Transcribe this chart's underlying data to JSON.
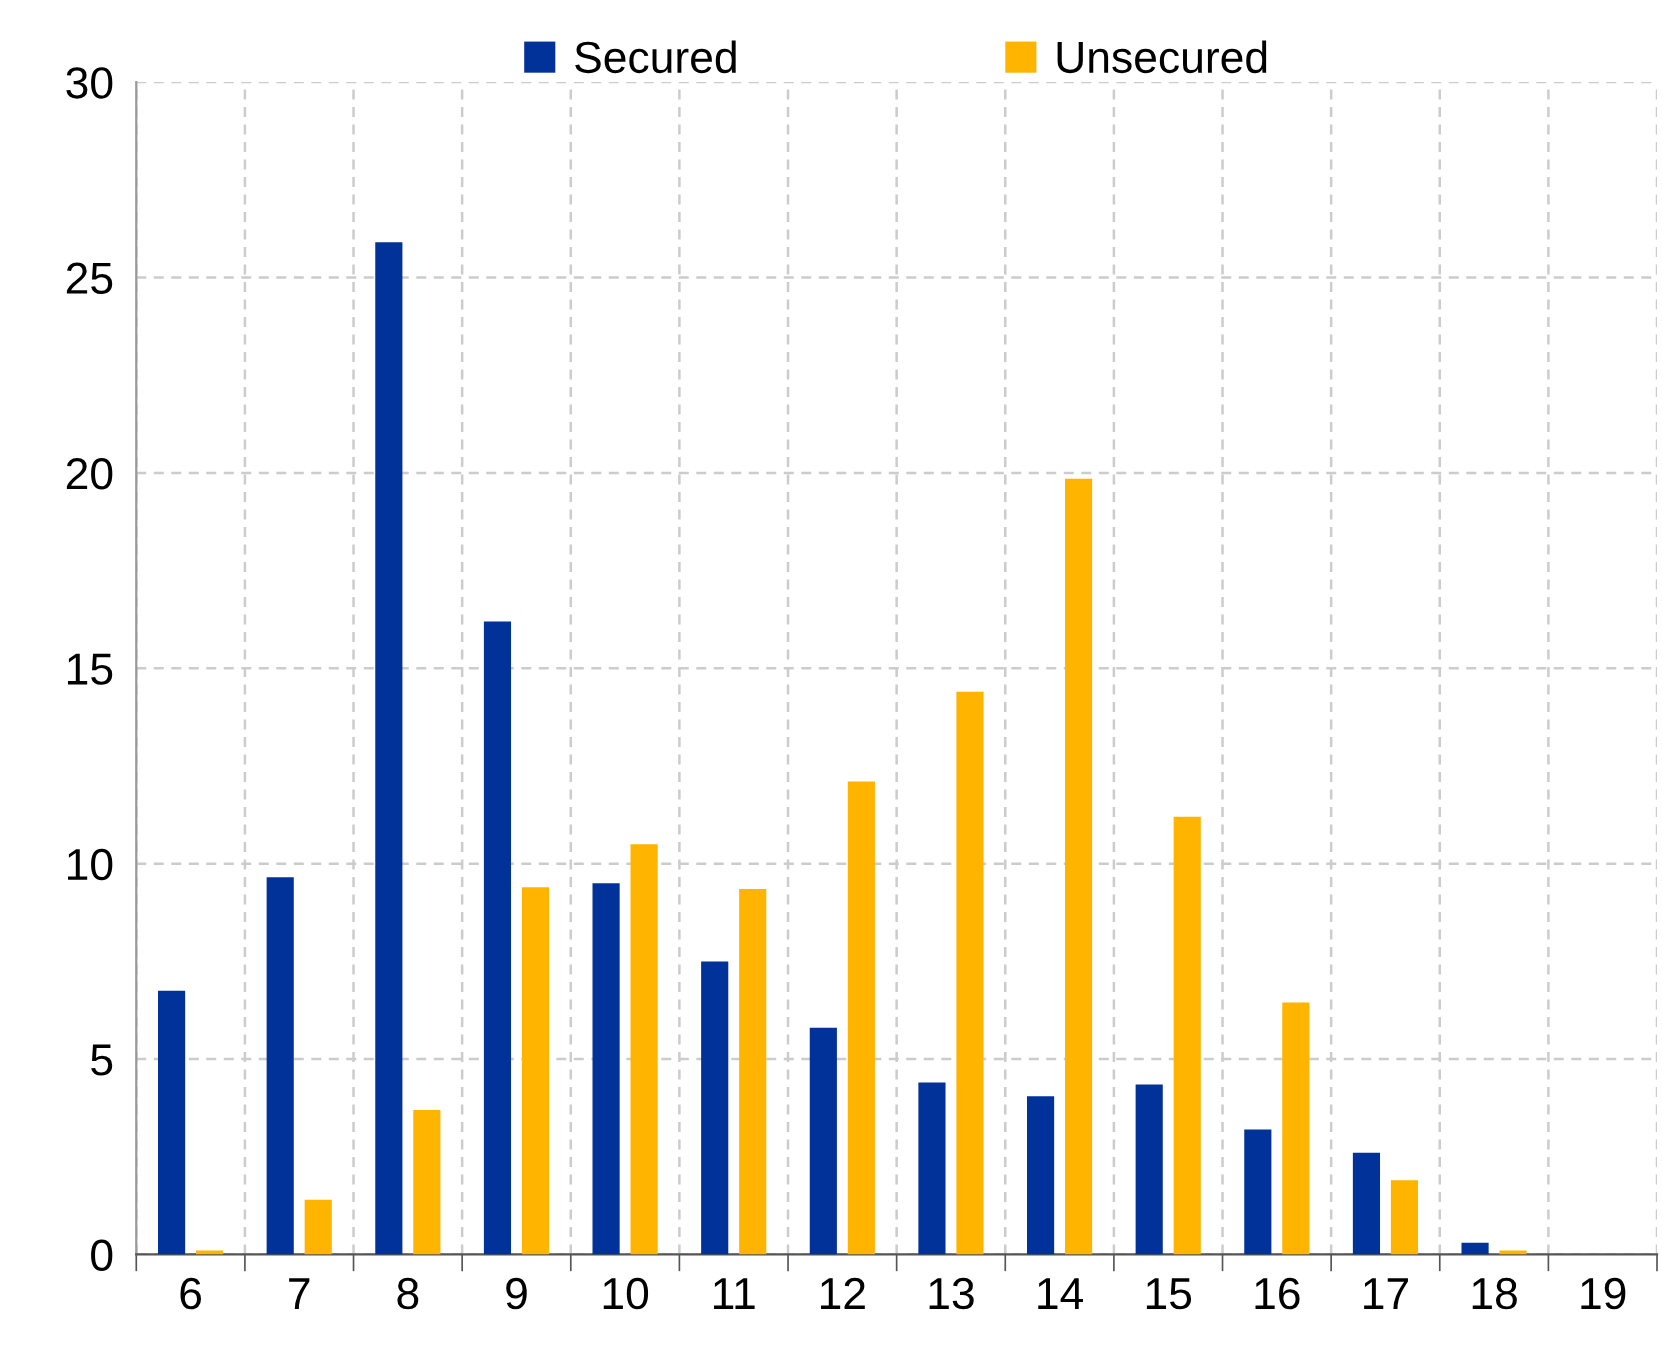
{
  "chart_data": {
    "type": "bar",
    "categories": [
      "6",
      "7",
      "8",
      "9",
      "10",
      "11",
      "12",
      "13",
      "14",
      "15",
      "16",
      "17",
      "18",
      "19"
    ],
    "series": [
      {
        "name": "Secured",
        "color": "#003299",
        "values": [
          6.75,
          9.65,
          25.9,
          16.2,
          9.5,
          7.5,
          5.8,
          4.4,
          4.05,
          4.35,
          3.2,
          2.6,
          0.3,
          null
        ]
      },
      {
        "name": "Unsecured",
        "color": "#ffb400",
        "values": [
          0.1,
          1.4,
          3.7,
          9.4,
          10.5,
          9.35,
          12.1,
          14.4,
          19.85,
          11.2,
          6.45,
          1.9,
          0.1,
          null
        ]
      }
    ],
    "ylim": [
      0,
      30
    ],
    "yticks": [
      0,
      5,
      10,
      15,
      20,
      25,
      30
    ],
    "grid": true,
    "legend": "top"
  }
}
